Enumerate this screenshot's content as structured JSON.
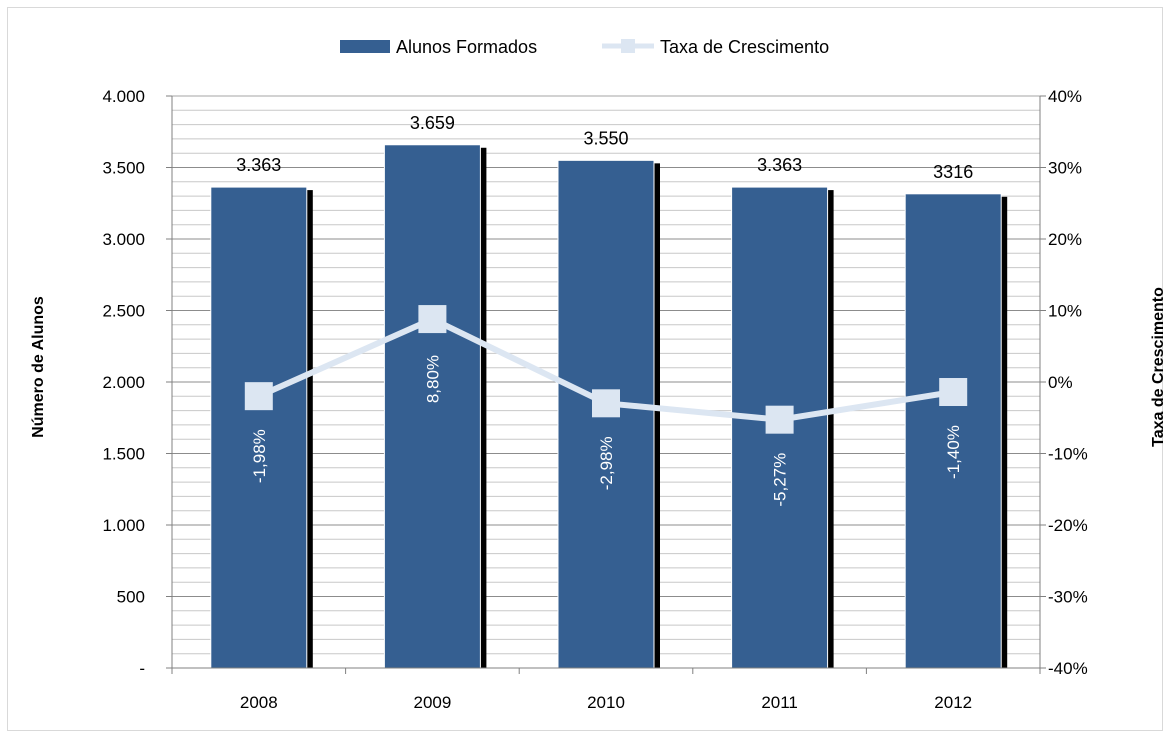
{
  "chart_data": {
    "type": "bar",
    "categories": [
      "2008",
      "2009",
      "2010",
      "2011",
      "2012"
    ],
    "series": [
      {
        "name": "Alunos Formados",
        "type": "bar",
        "axis": "left",
        "values": [
          3363,
          3659,
          3550,
          3363,
          3316
        ],
        "labels": [
          "3.363",
          "3.659",
          "3.550",
          "3.363",
          "3316"
        ],
        "color": "#355f91"
      },
      {
        "name": "Taxa de Crescimento",
        "type": "line",
        "axis": "right",
        "values": [
          -1.98,
          8.8,
          -2.98,
          -5.27,
          -1.4
        ],
        "labels": [
          "-1,98%",
          "8,80%",
          "-2,98%",
          "-5,27%",
          "-1,40%"
        ],
        "color": "#dce6f2"
      }
    ],
    "ylabel": "Número de Alunos",
    "y2label": "Taxa de Crescimento",
    "ylim": [
      0,
      4000
    ],
    "y2lim": [
      -40,
      40
    ],
    "yticks": [
      "-",
      "500",
      "1.000",
      "1.500",
      "2.000",
      "2.500",
      "3.000",
      "3.500",
      "4.000"
    ],
    "y2ticks": [
      "-40%",
      "-30%",
      "-20%",
      "-10%",
      "0%",
      "10%",
      "20%",
      "30%",
      "40%"
    ],
    "grid": true,
    "legend": "top-center"
  }
}
